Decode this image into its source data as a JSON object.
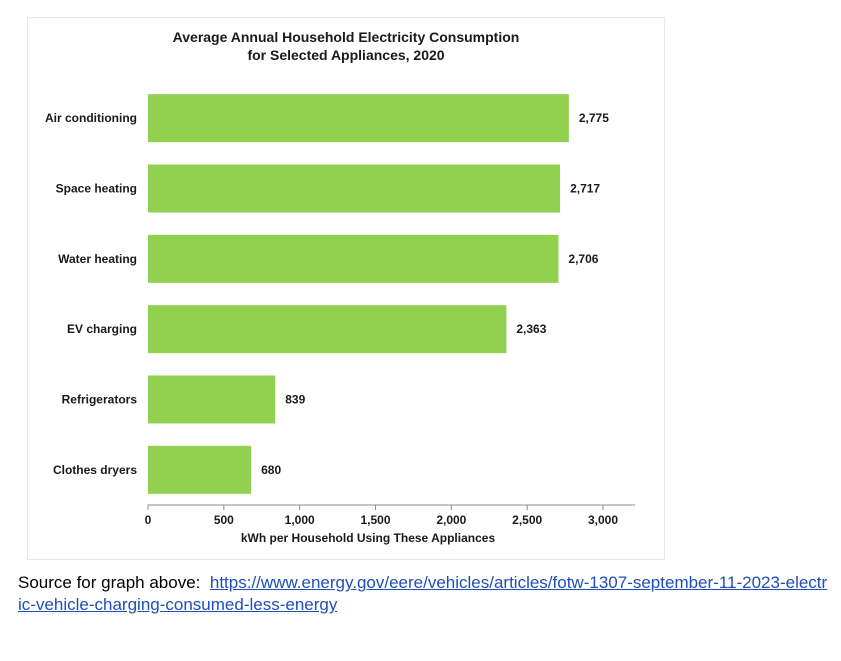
{
  "chart_data": {
    "type": "bar",
    "orientation": "horizontal",
    "title": "Average Annual Household Electricity Consumption",
    "subtitle": "for Selected Appliances, 2020",
    "categories": [
      "Air conditioning",
      "Space heating",
      "Water heating",
      "EV charging",
      "Refrigerators",
      "Clothes dryers"
    ],
    "values": [
      2775,
      2717,
      2706,
      2363,
      839,
      680
    ],
    "value_labels": [
      "2,775",
      "2,717",
      "2,706",
      "2,363",
      "839",
      "680"
    ],
    "xlabel": "kWh per Household Using These Appliances",
    "ylabel": "",
    "xlim": [
      0,
      3000
    ],
    "xticks": [
      0,
      500,
      1000,
      1500,
      2000,
      2500,
      3000
    ],
    "xtick_labels": [
      "0",
      "500",
      "1,000",
      "1,500",
      "2,000",
      "2,500",
      "3,000"
    ],
    "grid": false,
    "bar_color": "#92d050"
  },
  "source": {
    "prefix": "Source for graph above:",
    "url": "https://www.energy.gov/eere/vehicles/articles/fotw-1307-september-11-2023-electric-vehicle-charging-consumed-less-energy"
  }
}
